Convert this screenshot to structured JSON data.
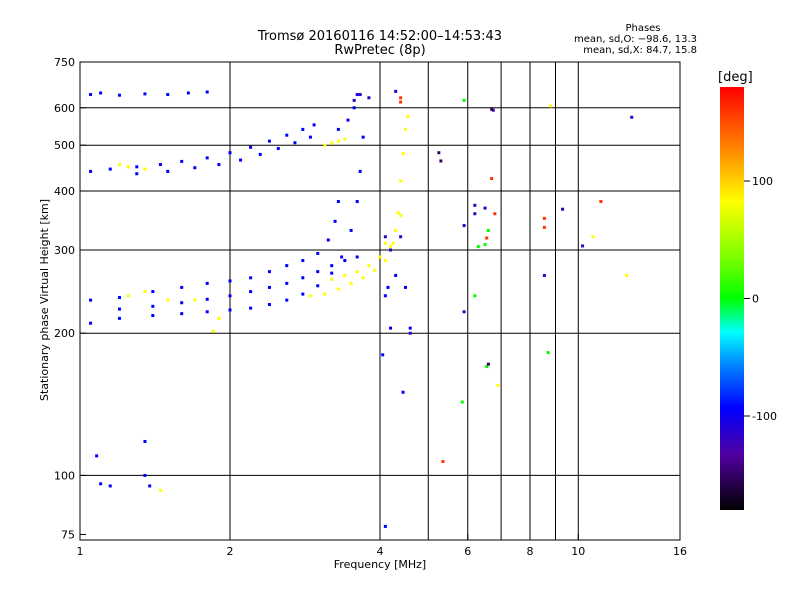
{
  "chart_data": {
    "type": "scatter",
    "title": "Tromsø 20160116 14:52:00–14:53:43",
    "subtitle": "RwPretec (8p)",
    "xlabel": "Frequency [MHz]",
    "ylabel": "Stationary phase Virtual Height [km]",
    "x_scale": "log",
    "y_scale": "log",
    "xlim": [
      1,
      16
    ],
    "ylim": [
      73,
      750
    ],
    "x_ticks": [
      1,
      2,
      4,
      6,
      8,
      10,
      16
    ],
    "x_tick_labels": [
      "1",
      "2",
      "4",
      "6",
      "8",
      "10",
      "16"
    ],
    "x_grid": [
      2,
      4,
      5,
      6,
      7,
      8,
      9,
      10
    ],
    "y_ticks": [
      75,
      100,
      200,
      300,
      400,
      500,
      600,
      750
    ],
    "y_tick_labels": [
      "75",
      "100",
      "200",
      "300",
      "400",
      "500",
      "600",
      "750"
    ],
    "y_grid": [
      100,
      200,
      300,
      400,
      500,
      600
    ],
    "grid": true,
    "stats": {
      "heading": "Phases",
      "line_o": "mean, sd,O: −98.6, 13.3",
      "line_x": "mean, sd,X: 84.7, 15.8"
    },
    "colorbar": {
      "unit": "[deg]",
      "range": [
        -180,
        180
      ],
      "ticks": [
        100,
        0,
        -100
      ],
      "tick_labels": [
        "100",
        "0",
        "-100"
      ]
    },
    "series": [
      {
        "points": [
          [
            1.05,
            640
          ],
          [
            1.1,
            645
          ],
          [
            1.2,
            638
          ],
          [
            1.35,
            642
          ],
          [
            1.5,
            640
          ],
          [
            1.65,
            645
          ],
          [
            1.8,
            648
          ],
          [
            1.05,
            440
          ],
          [
            1.15,
            445
          ],
          [
            1.3,
            450
          ],
          [
            1.45,
            455
          ],
          [
            1.6,
            462
          ],
          [
            1.8,
            470
          ],
          [
            2.0,
            482
          ],
          [
            2.2,
            495
          ],
          [
            2.4,
            510
          ],
          [
            2.6,
            525
          ],
          [
            2.8,
            540
          ],
          [
            2.95,
            552
          ],
          [
            1.3,
            435
          ],
          [
            1.5,
            440
          ],
          [
            1.7,
            448
          ],
          [
            1.9,
            455
          ],
          [
            2.1,
            465
          ],
          [
            2.3,
            478
          ],
          [
            2.5,
            492
          ],
          [
            2.7,
            506
          ],
          [
            2.9,
            520
          ],
          [
            3.3,
            540
          ],
          [
            3.45,
            565
          ],
          [
            3.55,
            600
          ],
          [
            3.6,
            640
          ],
          [
            1.05,
            210
          ],
          [
            1.2,
            215
          ],
          [
            1.4,
            218
          ],
          [
            1.6,
            220
          ],
          [
            1.8,
            222
          ],
          [
            2.0,
            224
          ],
          [
            2.2,
            226
          ],
          [
            2.4,
            230
          ],
          [
            2.6,
            235
          ],
          [
            2.8,
            242
          ],
          [
            3.0,
            252
          ],
          [
            3.2,
            268
          ],
          [
            3.35,
            290
          ],
          [
            3.5,
            330
          ],
          [
            3.6,
            380
          ],
          [
            3.65,
            440
          ],
          [
            3.7,
            520
          ],
          [
            1.05,
            235
          ],
          [
            1.2,
            238
          ],
          [
            1.4,
            245
          ],
          [
            1.6,
            250
          ],
          [
            1.8,
            255
          ],
          [
            2.0,
            258
          ],
          [
            2.2,
            262
          ],
          [
            2.4,
            270
          ],
          [
            2.6,
            278
          ],
          [
            2.8,
            285
          ],
          [
            3.0,
            295
          ],
          [
            3.15,
            315
          ],
          [
            3.25,
            345
          ],
          [
            3.3,
            380
          ],
          [
            1.2,
            225
          ],
          [
            1.4,
            228
          ],
          [
            1.6,
            232
          ],
          [
            1.8,
            236
          ],
          [
            2.0,
            240
          ],
          [
            2.2,
            245
          ],
          [
            2.4,
            250
          ],
          [
            2.6,
            255
          ],
          [
            2.8,
            262
          ],
          [
            3.0,
            270
          ],
          [
            3.2,
            278
          ],
          [
            3.4,
            285
          ],
          [
            3.6,
            290
          ],
          [
            1.08,
            110
          ],
          [
            1.1,
            96
          ],
          [
            1.15,
            95
          ],
          [
            1.35,
            118
          ],
          [
            1.35,
            100
          ],
          [
            1.38,
            95
          ],
          [
            4.1,
            240
          ],
          [
            4.15,
            250
          ],
          [
            4.2,
            205
          ],
          [
            4.3,
            265
          ],
          [
            4.5,
            250
          ],
          [
            4.6,
            205
          ],
          [
            4.05,
            180
          ],
          [
            4.45,
            150
          ],
          [
            4.1,
            78
          ]
        ]
      },
      {
        "points": [
          [
            1.25,
            240
          ],
          [
            1.35,
            245
          ],
          [
            1.5,
            235
          ],
          [
            1.7,
            235
          ],
          [
            1.9,
            215
          ],
          [
            1.2,
            455
          ],
          [
            1.25,
            450
          ],
          [
            1.35,
            445
          ],
          [
            3.1,
            500
          ],
          [
            3.2,
            505
          ],
          [
            3.3,
            510
          ],
          [
            3.4,
            515
          ],
          [
            2.9,
            240
          ],
          [
            3.1,
            242
          ],
          [
            3.3,
            248
          ],
          [
            3.5,
            255
          ],
          [
            3.7,
            262
          ],
          [
            3.9,
            272
          ],
          [
            4.1,
            285
          ],
          [
            4.25,
            310
          ],
          [
            4.35,
            360
          ],
          [
            4.4,
            420
          ],
          [
            4.45,
            480
          ],
          [
            4.5,
            540
          ],
          [
            4.55,
            575
          ],
          [
            3.2,
            260
          ],
          [
            3.4,
            265
          ],
          [
            3.6,
            270
          ],
          [
            3.8,
            278
          ],
          [
            4.0,
            290
          ],
          [
            4.2,
            305
          ],
          [
            4.1,
            310
          ],
          [
            4.3,
            330
          ],
          [
            4.4,
            355
          ],
          [
            6.7,
            595
          ],
          [
            8.8,
            605
          ],
          [
            12.5,
            265
          ],
          [
            10.7,
            320
          ],
          [
            6.9,
            155
          ],
          [
            1.45,
            93
          ],
          [
            1.85,
            202
          ]
        ]
      },
      {
        "points": [
          [
            5.35,
            107
          ],
          [
            6.55,
            318
          ],
          [
            8.55,
            335
          ],
          [
            8.55,
            350
          ],
          [
            11.1,
            380
          ],
          [
            6.7,
            425
          ],
          [
            6.8,
            358
          ],
          [
            4.4,
            617
          ],
          [
            4.4,
            630
          ]
        ]
      },
      {
        "points": [
          [
            5.9,
            622
          ],
          [
            5.85,
            143
          ],
          [
            6.3,
            305
          ],
          [
            6.5,
            308
          ],
          [
            6.6,
            330
          ],
          [
            6.2,
            240
          ],
          [
            8.7,
            182
          ],
          [
            6.55,
            170
          ]
        ]
      },
      {
        "points": [
          [
            3.55,
            622
          ],
          [
            3.65,
            640
          ],
          [
            3.8,
            630
          ],
          [
            4.3,
            650
          ],
          [
            4.1,
            320
          ],
          [
            4.2,
            300
          ],
          [
            4.4,
            320
          ],
          [
            6.5,
            368
          ],
          [
            6.75,
            593
          ],
          [
            8.55,
            265
          ],
          [
            9.3,
            366
          ],
          [
            10.2,
            306
          ],
          [
            12.8,
            573
          ],
          [
            6.2,
            373
          ],
          [
            6.2,
            358
          ],
          [
            5.9,
            338
          ],
          [
            4.6,
            200
          ],
          [
            5.9,
            222
          ]
        ]
      },
      {
        "points": [
          [
            5.3,
            463
          ],
          [
            5.25,
            482
          ],
          [
            6.7,
            596
          ],
          [
            6.6,
            172
          ]
        ]
      }
    ]
  }
}
